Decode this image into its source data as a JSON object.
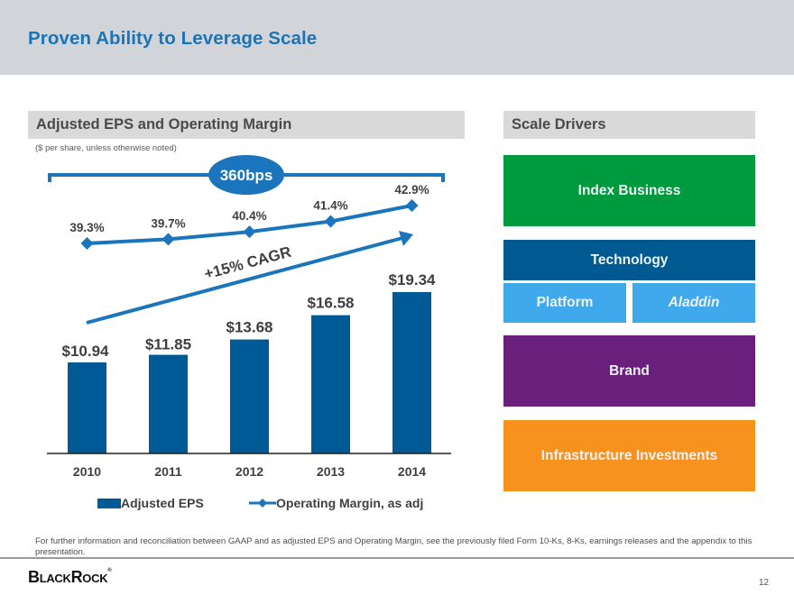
{
  "header": {
    "title": "Proven Ability to Leverage Scale"
  },
  "left_section": {
    "heading": "Adjusted EPS and Operating Margin",
    "note": "($ per share, unless otherwise noted)"
  },
  "chart_data": {
    "type": "bar",
    "title": "Adjusted EPS and Operating Margin",
    "subtitle": "($ per share, unless otherwise noted)",
    "categories": [
      "2010",
      "2011",
      "2012",
      "2013",
      "2014"
    ],
    "series": [
      {
        "name": "Adjusted EPS",
        "type": "bar",
        "values": [
          10.94,
          11.85,
          13.68,
          16.58,
          19.34
        ],
        "labels": [
          "$10.94",
          "$11.85",
          "$13.68",
          "$16.58",
          "$19.34"
        ],
        "color": "#005a96"
      },
      {
        "name": "Operating Margin, as adj",
        "type": "line",
        "marker": "diamond",
        "values": [
          39.3,
          39.7,
          40.4,
          41.4,
          42.9
        ],
        "labels": [
          "39.3%",
          "39.7%",
          "40.4%",
          "41.4%",
          "42.9%"
        ],
        "color": "#1a75bc"
      }
    ],
    "annotations": [
      {
        "text": "360bps",
        "kind": "bracket-badge",
        "spans": [
          "2010",
          "2014"
        ]
      },
      {
        "text": "+15% CAGR",
        "kind": "trend-arrow",
        "spans": [
          "2010",
          "2014"
        ]
      }
    ],
    "legend": {
      "position": "bottom",
      "entries": [
        "Adjusted EPS",
        "Operating Margin, as adj"
      ]
    },
    "xlabel": "",
    "ylabel": "",
    "grid": false
  },
  "right_section": {
    "heading": "Scale Drivers",
    "drivers": [
      {
        "label": "Index Business",
        "color": "#009a3e"
      },
      {
        "label": "Technology",
        "color": "#005a92"
      },
      {
        "label": "Platform",
        "color": "#3fa9ec"
      },
      {
        "label": "Aladdin",
        "color": "#3fa9ec"
      },
      {
        "label": "Brand",
        "color": "#6a1f7c"
      },
      {
        "label": "Infrastructure Investments",
        "color": "#f7921e"
      }
    ]
  },
  "footer": {
    "footnote": "For further information and reconciliation between GAAP and as adjusted EPS and Operating Margin, see the previously filed Form 10-Ks, 8-Ks, earnings releases and the appendix to this presentation.",
    "logo": "BlackRock",
    "page_number": "12"
  }
}
